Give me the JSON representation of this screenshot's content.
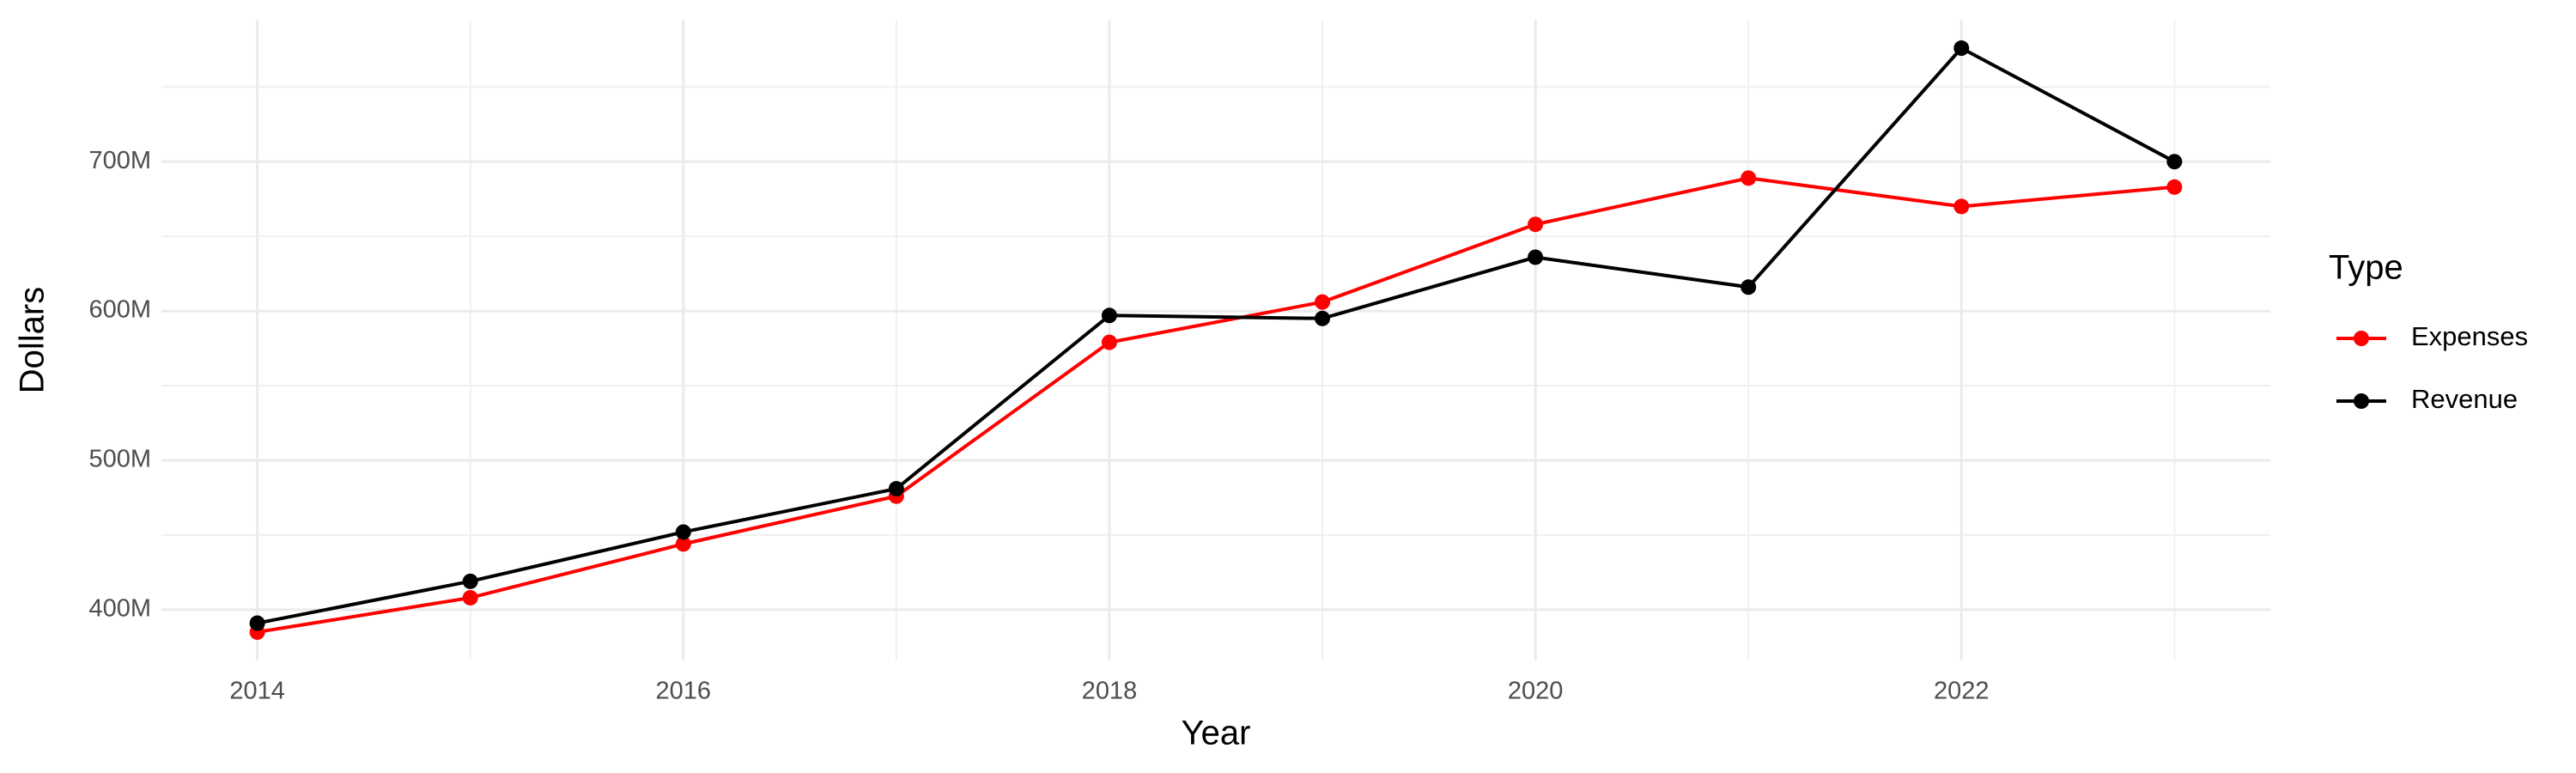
{
  "chart_data": {
    "type": "line",
    "x_label": "Year",
    "y_label": "Dollars",
    "legend_title": "Type",
    "x": [
      2014,
      2015,
      2016,
      2017,
      2018,
      2019,
      2020,
      2021,
      2022,
      2023
    ],
    "series": [
      {
        "name": "Expenses",
        "color": "#ff0000",
        "values": [
          385000000,
          408000000,
          444000000,
          476000000,
          579000000,
          606000000,
          658000000,
          689000000,
          670000000,
          683000000
        ]
      },
      {
        "name": "Revenue",
        "color": "#000000",
        "values": [
          391000000,
          419000000,
          452000000,
          481000000,
          597000000,
          595000000,
          636000000,
          616000000,
          776000000,
          700000000
        ]
      }
    ],
    "xlim": [
      2013.55,
      2023.45
    ],
    "xticks": [
      2014,
      2016,
      2018,
      2020,
      2022
    ],
    "ylim": [
      366000000,
      795000000
    ],
    "yticks": [
      {
        "value": 400000000,
        "label": "400M"
      },
      {
        "value": 500000000,
        "label": "500M"
      },
      {
        "value": 600000000,
        "label": "600M"
      },
      {
        "value": 700000000,
        "label": "700M"
      }
    ],
    "grid": true,
    "legend_position": "right"
  }
}
